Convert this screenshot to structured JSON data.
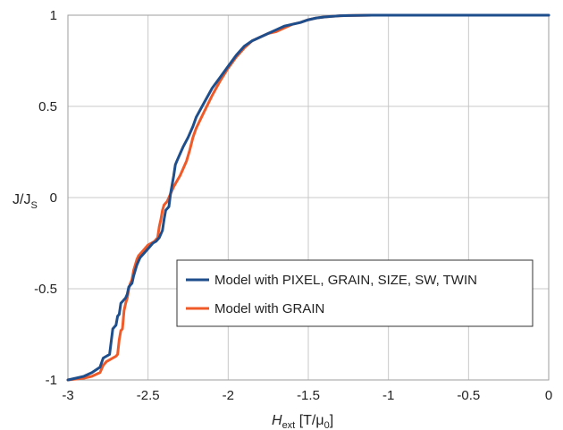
{
  "chart_data": {
    "type": "line",
    "xlabel": {
      "main": "H",
      "sub": "ext",
      "rest": " [T/μ",
      "sub2": "0",
      "close": "]"
    },
    "ylabel": {
      "main": "J/J",
      "sub": "S"
    },
    "xlim": [
      -3,
      0
    ],
    "ylim": [
      -1,
      1
    ],
    "grid": true,
    "legend_position": "center-right",
    "x_ticks": [
      {
        "value": -3,
        "label": "-3"
      },
      {
        "value": -2.5,
        "label": "-2.5"
      },
      {
        "value": -2,
        "label": "-2"
      },
      {
        "value": -1.5,
        "label": "-1.5"
      },
      {
        "value": -1,
        "label": "-1"
      },
      {
        "value": -0.5,
        "label": "-0.5"
      },
      {
        "value": 0,
        "label": "0"
      }
    ],
    "y_ticks": [
      {
        "value": -1,
        "label": "-1"
      },
      {
        "value": -0.5,
        "label": "-0.5"
      },
      {
        "value": 0,
        "label": "0"
      },
      {
        "value": 0.5,
        "label": "0.5"
      },
      {
        "value": 1,
        "label": "1"
      }
    ],
    "series": [
      {
        "name": "Model with PIXEL, GRAIN, SIZE, SW, TWIN",
        "color": "#1f4e8c",
        "x": [
          -3.0,
          -2.95,
          -2.9,
          -2.85,
          -2.8,
          -2.78,
          -2.76,
          -2.74,
          -2.72,
          -2.71,
          -2.7,
          -2.69,
          -2.68,
          -2.67,
          -2.66,
          -2.65,
          -2.64,
          -2.63,
          -2.62,
          -2.61,
          -2.6,
          -2.59,
          -2.58,
          -2.57,
          -2.56,
          -2.55,
          -2.53,
          -2.51,
          -2.49,
          -2.47,
          -2.45,
          -2.43,
          -2.41,
          -2.4,
          -2.39,
          -2.38,
          -2.37,
          -2.36,
          -2.35,
          -2.34,
          -2.33,
          -2.32,
          -2.3,
          -2.28,
          -2.25,
          -2.22,
          -2.2,
          -2.15,
          -2.1,
          -2.05,
          -2.0,
          -1.95,
          -1.9,
          -1.85,
          -1.8,
          -1.75,
          -1.7,
          -1.65,
          -1.6,
          -1.55,
          -1.5,
          -1.45,
          -1.4,
          -1.35,
          -1.3,
          -1.25,
          -1.2,
          -1.1,
          -1.0,
          -0.5,
          0.0
        ],
        "y": [
          -1.0,
          -0.99,
          -0.98,
          -0.96,
          -0.93,
          -0.88,
          -0.87,
          -0.86,
          -0.72,
          -0.71,
          -0.7,
          -0.65,
          -0.64,
          -0.58,
          -0.57,
          -0.56,
          -0.55,
          -0.53,
          -0.49,
          -0.48,
          -0.47,
          -0.43,
          -0.4,
          -0.37,
          -0.35,
          -0.33,
          -0.31,
          -0.29,
          -0.27,
          -0.25,
          -0.24,
          -0.22,
          -0.18,
          -0.12,
          -0.07,
          -0.06,
          -0.05,
          0.02,
          0.07,
          0.12,
          0.18,
          0.2,
          0.24,
          0.28,
          0.33,
          0.39,
          0.44,
          0.52,
          0.6,
          0.66,
          0.72,
          0.78,
          0.83,
          0.86,
          0.88,
          0.9,
          0.92,
          0.94,
          0.95,
          0.96,
          0.975,
          0.985,
          0.99,
          0.994,
          0.997,
          0.998,
          0.999,
          1.0,
          1.0,
          1.0,
          1.0
        ]
      },
      {
        "name": "Model with GRAIN",
        "color": "#f05a28",
        "x": [
          -3.0,
          -2.9,
          -2.85,
          -2.8,
          -2.78,
          -2.76,
          -2.74,
          -2.72,
          -2.7,
          -2.69,
          -2.68,
          -2.67,
          -2.66,
          -2.65,
          -2.64,
          -2.63,
          -2.62,
          -2.61,
          -2.6,
          -2.59,
          -2.58,
          -2.57,
          -2.56,
          -2.54,
          -2.52,
          -2.5,
          -2.48,
          -2.46,
          -2.44,
          -2.43,
          -2.42,
          -2.41,
          -2.4,
          -2.38,
          -2.36,
          -2.34,
          -2.32,
          -2.3,
          -2.28,
          -2.26,
          -2.24,
          -2.22,
          -2.2,
          -2.15,
          -2.1,
          -2.05,
          -2.0,
          -1.95,
          -1.9,
          -1.85,
          -1.8,
          -1.75,
          -1.7,
          -1.65,
          -1.6,
          -1.55,
          -1.5,
          -1.45,
          -1.4,
          -1.35,
          -1.3,
          -1.25,
          -1.2,
          -1.1,
          -1.0,
          -0.5,
          0.0
        ],
        "y": [
          -1.0,
          -0.99,
          -0.98,
          -0.96,
          -0.92,
          -0.9,
          -0.89,
          -0.88,
          -0.87,
          -0.86,
          -0.78,
          -0.73,
          -0.72,
          -0.62,
          -0.58,
          -0.55,
          -0.5,
          -0.47,
          -0.45,
          -0.4,
          -0.37,
          -0.34,
          -0.32,
          -0.3,
          -0.28,
          -0.26,
          -0.25,
          -0.24,
          -0.22,
          -0.16,
          -0.12,
          -0.07,
          -0.04,
          -0.02,
          0.02,
          0.06,
          0.09,
          0.12,
          0.16,
          0.2,
          0.26,
          0.33,
          0.38,
          0.47,
          0.56,
          0.64,
          0.71,
          0.77,
          0.82,
          0.86,
          0.88,
          0.9,
          0.91,
          0.93,
          0.95,
          0.96,
          0.975,
          0.985,
          0.99,
          0.994,
          0.997,
          0.998,
          0.999,
          1.0,
          1.0,
          1.0,
          1.0
        ]
      }
    ]
  }
}
